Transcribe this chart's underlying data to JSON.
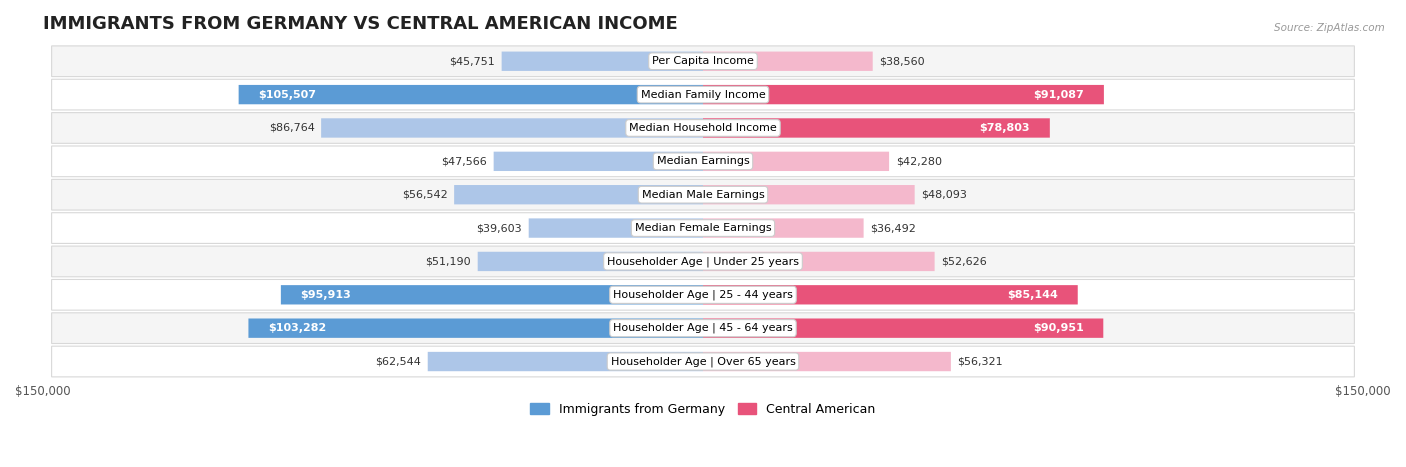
{
  "title": "IMMIGRANTS FROM GERMANY VS CENTRAL AMERICAN INCOME",
  "source": "Source: ZipAtlas.com",
  "categories": [
    "Per Capita Income",
    "Median Family Income",
    "Median Household Income",
    "Median Earnings",
    "Median Male Earnings",
    "Median Female Earnings",
    "Householder Age | Under 25 years",
    "Householder Age | 25 - 44 years",
    "Householder Age | 45 - 64 years",
    "Householder Age | Over 65 years"
  ],
  "germany_values": [
    45751,
    105507,
    86764,
    47566,
    56542,
    39603,
    51190,
    95913,
    103282,
    62544
  ],
  "central_values": [
    38560,
    91087,
    78803,
    42280,
    48093,
    36492,
    52626,
    85144,
    90951,
    56321
  ],
  "germany_color_normal": "#adc6e8",
  "germany_color_highlight": "#5b9bd5",
  "central_color_normal": "#f4b8cc",
  "central_color_highlight": "#e8537a",
  "germany_highlight": [
    1,
    7,
    8
  ],
  "central_highlight": [
    1,
    2,
    7,
    8
  ],
  "xlim": 150000,
  "bar_height": 0.58,
  "row_bg_light": "#f5f5f5",
  "row_bg_white": "#ffffff",
  "row_border": "#d8d8d8",
  "title_fontsize": 13,
  "legend_germany": "Immigrants from Germany",
  "legend_central": "Central American"
}
